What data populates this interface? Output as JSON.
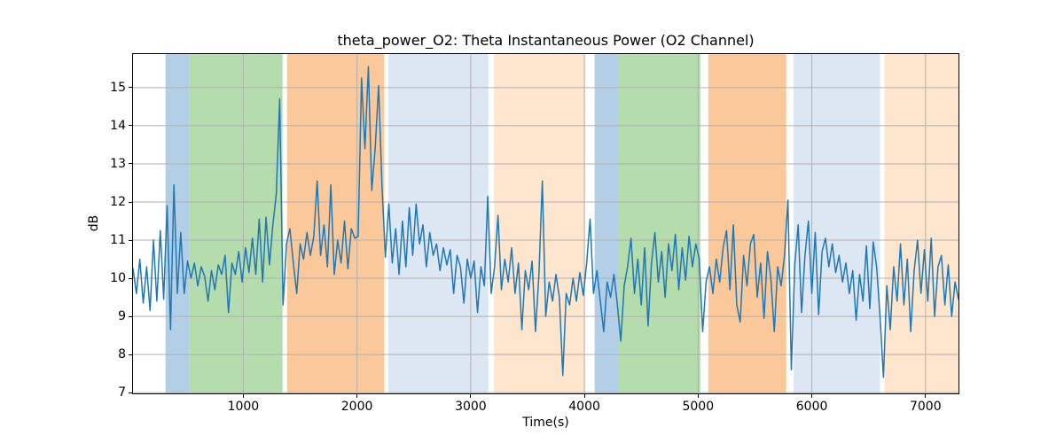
{
  "chart_data": {
    "type": "line",
    "title": "theta_power_O2: Theta Instantaneous Power (O2 Channel)",
    "xlabel": "Time(s)",
    "ylabel": "dB",
    "xlim": [
      30,
      7290
    ],
    "ylim": [
      6.98,
      15.88
    ],
    "xticks": [
      1000,
      2000,
      3000,
      4000,
      5000,
      6000,
      7000
    ],
    "yticks": [
      7,
      8,
      9,
      10,
      11,
      12,
      13,
      14,
      15
    ],
    "grid": true,
    "grid_color": "#b0b0b0",
    "line": {
      "name": "theta_power_O2",
      "color": "#1f77b4",
      "width": 1.5
    },
    "band_colors": {
      "blue": "#b3cfe8",
      "green": "#b5dcac",
      "orange": "#fbc999",
      "paleblue": "#dde7f3",
      "paleorange": "#fde6cd"
    },
    "bands": [
      {
        "start": 316,
        "end": 524,
        "color": "blue"
      },
      {
        "start": 524,
        "end": 1345,
        "color": "green"
      },
      {
        "start": 1385,
        "end": 2240,
        "color": "orange"
      },
      {
        "start": 2275,
        "end": 3155,
        "color": "paleblue"
      },
      {
        "start": 3205,
        "end": 4005,
        "color": "paleorange"
      },
      {
        "start": 4090,
        "end": 4300,
        "color": "blue"
      },
      {
        "start": 4300,
        "end": 5020,
        "color": "green"
      },
      {
        "start": 5090,
        "end": 5775,
        "color": "orange"
      },
      {
        "start": 5840,
        "end": 6600,
        "color": "paleblue"
      },
      {
        "start": 6640,
        "end": 7290,
        "color": "paleorange"
      }
    ],
    "series": {
      "x_start": 30,
      "x_step": 30,
      "values": [
        10.25,
        9.6,
        10.5,
        9.35,
        10.3,
        9.15,
        11.0,
        9.4,
        11.25,
        9.45,
        11.9,
        8.65,
        12.45,
        9.6,
        11.2,
        9.6,
        10.45,
        10.0,
        10.4,
        9.8,
        10.3,
        10.05,
        9.4,
        10.2,
        9.7,
        10.35,
        10.1,
        10.6,
        9.1,
        10.4,
        10.1,
        10.7,
        9.9,
        10.8,
        10.15,
        11.05,
        10.1,
        11.55,
        9.9,
        11.6,
        10.35,
        11.4,
        12.2,
        14.7,
        9.3,
        10.9,
        11.3,
        10.4,
        9.6,
        10.9,
        10.5,
        11.2,
        10.6,
        11.1,
        12.55,
        10.6,
        11.4,
        10.3,
        12.45,
        10.1,
        11.0,
        10.4,
        11.5,
        10.25,
        11.3,
        11.05,
        11.1,
        15.25,
        13.4,
        15.55,
        12.3,
        13.4,
        15.05,
        12.4,
        10.55,
        11.95,
        10.4,
        11.3,
        10.1,
        11.5,
        10.3,
        11.85,
        10.6,
        11.95,
        10.9,
        11.4,
        10.3,
        11.2,
        10.6,
        10.9,
        10.2,
        10.8,
        10.35,
        10.75,
        9.6,
        10.6,
        10.3,
        9.35,
        10.5,
        10.0,
        10.45,
        9.1,
        10.3,
        9.8,
        12.15,
        9.6,
        10.3,
        11.65,
        9.7,
        10.5,
        9.9,
        10.8,
        9.6,
        10.4,
        8.65,
        10.2,
        9.7,
        10.45,
        8.6,
        10.1,
        12.55,
        9.0,
        9.9,
        9.4,
        10.1,
        9.5,
        7.45,
        9.6,
        9.3,
        10.0,
        9.4,
        10.15,
        9.55,
        10.4,
        11.55,
        9.6,
        10.2,
        9.4,
        8.6,
        9.9,
        9.5,
        10.1,
        9.3,
        8.35,
        9.8,
        10.3,
        11.05,
        9.6,
        10.5,
        9.3,
        10.8,
        8.75,
        10.4,
        11.2,
        9.9,
        10.7,
        9.5,
        10.9,
        10.2,
        11.15,
        9.7,
        10.8,
        9.95,
        11.1,
        10.3,
        10.9,
        10.5,
        8.6,
        9.9,
        10.3,
        9.6,
        10.5,
        9.9,
        10.8,
        11.25,
        9.7,
        11.4,
        9.3,
        8.85,
        10.6,
        9.8,
        10.9,
        11.15,
        9.5,
        10.4,
        8.95,
        10.7,
        10.0,
        8.6,
        10.3,
        9.8,
        10.6,
        12.05,
        7.6,
        10.35,
        11.4,
        9.1,
        10.6,
        11.5,
        9.6,
        11.2,
        9.05,
        10.7,
        11.05,
        10.3,
        10.9,
        10.15,
        10.6,
        9.9,
        10.4,
        9.6,
        10.2,
        8.9,
        10.1,
        9.4,
        10.85,
        9.2,
        10.95,
        10.3,
        9.0,
        7.4,
        9.8,
        8.65,
        10.3,
        9.4,
        10.9,
        9.3,
        10.5,
        8.6,
        10.2,
        11.0,
        9.6,
        10.75,
        9.4,
        11.05,
        9.0,
        10.3,
        10.6,
        9.3,
        10.35,
        9.0,
        9.9,
        9.45
      ]
    }
  }
}
